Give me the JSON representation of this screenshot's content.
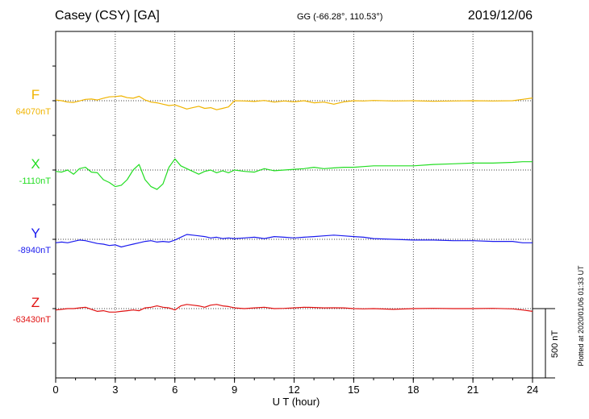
{
  "header": {
    "station": "Casey (CSY)  [GA]",
    "coords": "GG (-66.28°, 110.53°)",
    "date": "2019/12/06"
  },
  "footer": {
    "plotted": "Plotted at 2020/01/06 01:33 UT"
  },
  "chart_data": {
    "type": "line",
    "xlabel": "U T (hour)",
    "xlim": [
      0,
      24
    ],
    "xticks": [
      0,
      3,
      6,
      9,
      12,
      15,
      18,
      21,
      24
    ],
    "scale_bar": {
      "label": "500 nT",
      "value": 500
    },
    "series": [
      {
        "name": "F",
        "baseline_label": "64070nT",
        "baseline": 64070,
        "color": "#f0b400",
        "x": [
          0,
          0.3,
          0.6,
          0.9,
          1.2,
          1.5,
          1.8,
          2.1,
          2.4,
          2.7,
          3.0,
          3.3,
          3.6,
          3.9,
          4.2,
          4.5,
          4.8,
          5.1,
          5.4,
          5.7,
          6.0,
          6.3,
          6.6,
          6.9,
          7.2,
          7.5,
          7.8,
          8.1,
          8.4,
          8.7,
          9.0,
          9.5,
          10,
          10.5,
          11,
          11.5,
          12,
          12.5,
          13,
          13.5,
          14,
          14.5,
          15,
          15.5,
          16,
          17,
          18,
          19,
          20,
          21,
          22,
          23,
          23.5,
          24
        ],
        "y": [
          64075,
          64070,
          64060,
          64058,
          64068,
          64080,
          64082,
          64075,
          64088,
          64098,
          64100,
          64105,
          64092,
          64088,
          64102,
          64075,
          64060,
          64055,
          64045,
          64035,
          64040,
          64025,
          64010,
          64020,
          64030,
          64015,
          64020,
          64005,
          64015,
          64025,
          64070,
          64068,
          64065,
          64072,
          64060,
          64068,
          64062,
          64070,
          64055,
          64060,
          64045,
          64062,
          64070,
          64068,
          64072,
          64068,
          64070,
          64066,
          64068,
          64070,
          64068,
          64070,
          64080,
          64090
        ]
      },
      {
        "name": "X",
        "baseline_label": "-1110nT",
        "baseline": -1110,
        "color": "#22dd22",
        "x": [
          0,
          0.3,
          0.6,
          0.9,
          1.2,
          1.5,
          1.8,
          2.1,
          2.4,
          2.7,
          3.0,
          3.3,
          3.6,
          3.9,
          4.2,
          4.5,
          4.8,
          5.1,
          5.4,
          5.7,
          6.0,
          6.3,
          6.6,
          6.9,
          7.2,
          7.5,
          7.8,
          8.1,
          8.4,
          8.7,
          9.0,
          9.5,
          10,
          10.5,
          11,
          11.5,
          12,
          12.5,
          13,
          13.5,
          14,
          14.5,
          15,
          15.5,
          16,
          17,
          18,
          19,
          20,
          21,
          22,
          23,
          23.5,
          24
        ],
        "y": [
          -1120,
          -1125,
          -1110,
          -1140,
          -1100,
          -1090,
          -1125,
          -1130,
          -1180,
          -1200,
          -1230,
          -1220,
          -1180,
          -1110,
          -1070,
          -1180,
          -1230,
          -1250,
          -1210,
          -1090,
          -1030,
          -1080,
          -1100,
          -1120,
          -1140,
          -1120,
          -1110,
          -1130,
          -1115,
          -1130,
          -1110,
          -1120,
          -1125,
          -1100,
          -1115,
          -1110,
          -1105,
          -1100,
          -1090,
          -1100,
          -1095,
          -1090,
          -1090,
          -1085,
          -1080,
          -1080,
          -1080,
          -1070,
          -1065,
          -1060,
          -1060,
          -1055,
          -1050,
          -1050
        ]
      },
      {
        "name": "Y",
        "baseline_label": "-8940nT",
        "baseline": -8940,
        "color": "#1a1aee",
        "x": [
          0,
          0.3,
          0.6,
          0.9,
          1.2,
          1.5,
          1.8,
          2.1,
          2.4,
          2.7,
          3.0,
          3.3,
          3.6,
          3.9,
          4.2,
          4.5,
          4.8,
          5.1,
          5.4,
          5.7,
          6.0,
          6.3,
          6.6,
          6.9,
          7.2,
          7.5,
          7.8,
          8.1,
          8.4,
          8.7,
          9.0,
          9.5,
          10,
          10.5,
          11,
          11.5,
          12,
          12.5,
          13,
          13.5,
          14,
          14.5,
          15,
          15.5,
          16,
          17,
          18,
          19,
          20,
          21,
          22,
          23,
          23.5,
          24
        ],
        "y": [
          -8965,
          -8960,
          -8965,
          -8955,
          -8945,
          -8950,
          -8960,
          -8970,
          -8975,
          -8985,
          -8980,
          -8995,
          -8985,
          -8975,
          -8965,
          -8955,
          -8950,
          -8960,
          -8955,
          -8960,
          -8945,
          -8925,
          -8905,
          -8910,
          -8915,
          -8920,
          -8930,
          -8925,
          -8935,
          -8930,
          -8935,
          -8930,
          -8925,
          -8935,
          -8920,
          -8925,
          -8930,
          -8925,
          -8920,
          -8915,
          -8910,
          -8915,
          -8920,
          -8925,
          -8935,
          -8940,
          -8945,
          -8945,
          -8950,
          -8950,
          -8955,
          -8955,
          -8965,
          -8965
        ]
      },
      {
        "name": "Z",
        "baseline_label": "-63430nT",
        "baseline": -63430,
        "color": "#e01010",
        "x": [
          0,
          0.3,
          0.6,
          0.9,
          1.2,
          1.5,
          1.8,
          2.1,
          2.4,
          2.7,
          3.0,
          3.3,
          3.6,
          3.9,
          4.2,
          4.5,
          4.8,
          5.1,
          5.4,
          5.7,
          6.0,
          6.3,
          6.6,
          6.9,
          7.2,
          7.5,
          7.8,
          8.1,
          8.4,
          8.7,
          9.0,
          9.5,
          10,
          10.5,
          11,
          11.5,
          12,
          12.5,
          13,
          13.5,
          14,
          14.5,
          15,
          15.5,
          16,
          17,
          18,
          19,
          20,
          21,
          22,
          23,
          23.5,
          24
        ],
        "y": [
          -63440,
          -63435,
          -63430,
          -63430,
          -63425,
          -63420,
          -63435,
          -63450,
          -63445,
          -63455,
          -63455,
          -63450,
          -63445,
          -63440,
          -63445,
          -63425,
          -63420,
          -63410,
          -63420,
          -63425,
          -63440,
          -63410,
          -63400,
          -63405,
          -63410,
          -63420,
          -63405,
          -63400,
          -63410,
          -63415,
          -63425,
          -63430,
          -63425,
          -63420,
          -63430,
          -63428,
          -63425,
          -63420,
          -63422,
          -63425,
          -63424,
          -63425,
          -63430,
          -63432,
          -63430,
          -63435,
          -63430,
          -63428,
          -63430,
          -63430,
          -63428,
          -63432,
          -63440,
          -63450
        ]
      }
    ]
  }
}
